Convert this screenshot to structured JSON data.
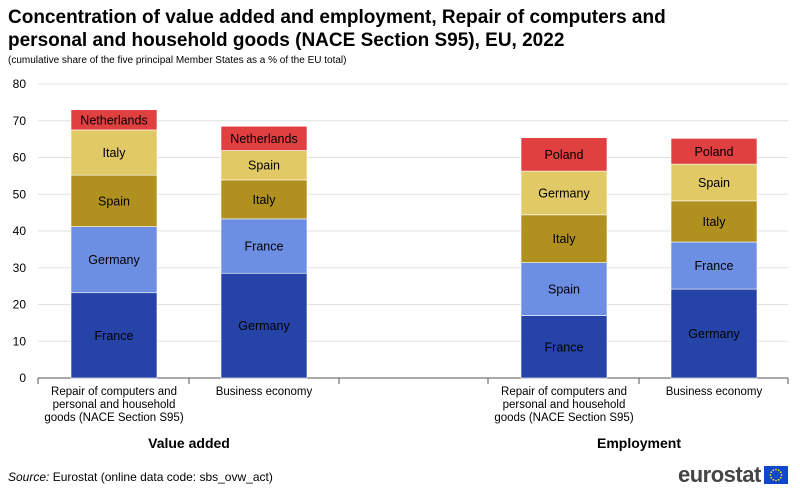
{
  "title": "Concentration of value added and employment, Repair of computers and personal and household goods (NACE Section S95), EU, 2022",
  "subtitle": "(cumulative  share of the five principal Member States as a % of the EU total)",
  "source_label": "Source:",
  "source_text": " Eurostat (online data code: sbs_ovw_act)",
  "logo_text": "eurostat",
  "colors": {
    "grid": "#e0e0e0",
    "axis": "#555555",
    "segments": [
      "#2644a7",
      "#6c8ee3",
      "#b09120",
      "#e1c966",
      "#e04040"
    ],
    "label_dark": "#000000",
    "label_light": "#000000",
    "flag_blue": "#0e47cb",
    "flag_star": "#ffde00"
  },
  "chart_data": {
    "type": "bar",
    "stacked": true,
    "ylim": [
      0,
      80
    ],
    "yticks": [
      0,
      10,
      20,
      30,
      40,
      50,
      60,
      70,
      80
    ],
    "grid": true,
    "groups": [
      {
        "name": "Value added",
        "bars": [
          {
            "label": [
              "Repair of computers and",
              "personal and household",
              "goods (NACE Section S95)"
            ],
            "segments": [
              {
                "country": "France",
                "value": 23.2
              },
              {
                "country": "Germany",
                "value": 18.0
              },
              {
                "country": "Spain",
                "value": 14.0
              },
              {
                "country": "Italy",
                "value": 12.3
              },
              {
                "country": "Netherlands",
                "value": 5.5
              }
            ]
          },
          {
            "label": [
              "Business economy"
            ],
            "segments": [
              {
                "country": "Germany",
                "value": 28.5
              },
              {
                "country": "France",
                "value": 14.8
              },
              {
                "country": "Italy",
                "value": 10.6
              },
              {
                "country": "Spain",
                "value": 8.0
              },
              {
                "country": "Netherlands",
                "value": 6.6
              }
            ]
          }
        ]
      },
      {
        "name": "Employment",
        "bars": [
          {
            "label": [
              "Repair of computers and",
              "personal and household",
              "goods (NACE Section S95)"
            ],
            "segments": [
              {
                "country": "France",
                "value": 17.0
              },
              {
                "country": "Spain",
                "value": 14.4
              },
              {
                "country": "Italy",
                "value": 13.0
              },
              {
                "country": "Germany",
                "value": 11.9
              },
              {
                "country": "Poland",
                "value": 9.1
              }
            ]
          },
          {
            "label": [
              "Business economy"
            ],
            "segments": [
              {
                "country": "Germany",
                "value": 24.2
              },
              {
                "country": "France",
                "value": 12.8
              },
              {
                "country": "Italy",
                "value": 11.2
              },
              {
                "country": "Spain",
                "value": 10.0
              },
              {
                "country": "Poland",
                "value": 7.0
              }
            ]
          }
        ]
      }
    ]
  }
}
